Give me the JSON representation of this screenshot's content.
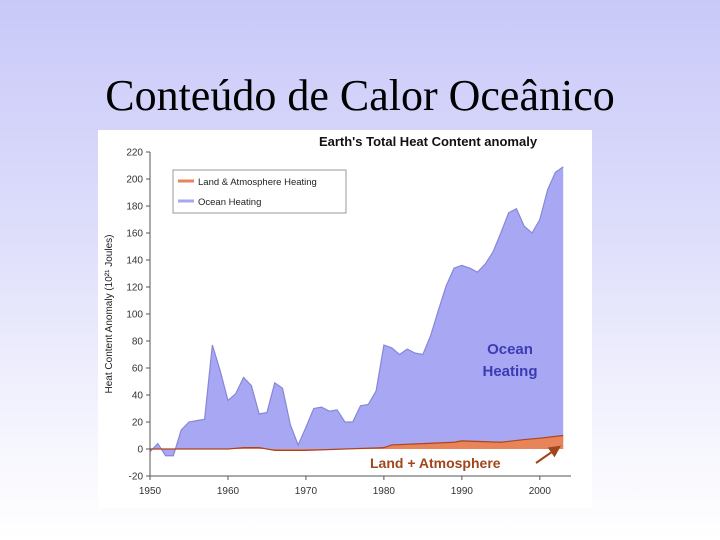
{
  "slide": {
    "title": "Conteúdo de Calor Oceânico"
  },
  "colors": {
    "ocean_fill": "#a7a7f3",
    "ocean_line": "#8787d8",
    "land_fill": "#e8845a",
    "land_line": "#b04418",
    "ocean_text": "#3b3bb3",
    "land_text": "#a0461c"
  },
  "chart_data": {
    "type": "area",
    "title": "Earth's Total Heat Content anomaly",
    "ylabel": "Heat Content Anomaly (10²¹ Joules)",
    "xlabel": "",
    "xlim": [
      1950,
      2004
    ],
    "ylim": [
      -20,
      220
    ],
    "x_ticks": [
      1950,
      1960,
      1970,
      1980,
      1990,
      2000
    ],
    "y_ticks": [
      -20,
      0,
      20,
      40,
      60,
      80,
      100,
      120,
      140,
      160,
      180,
      200,
      220
    ],
    "grid": false,
    "legend_position": "top-left",
    "series": [
      {
        "name": "Land & Atmosphere Heating",
        "x": [
          1950,
          1955,
          1960,
          1962,
          1964,
          1966,
          1970,
          1975,
          1980,
          1981,
          1985,
          1989,
          1990,
          1995,
          1998,
          2000,
          2003
        ],
        "values": [
          0,
          0,
          0,
          1,
          1,
          -1,
          -1,
          0,
          1,
          3,
          4,
          5,
          6,
          5,
          7,
          8,
          10
        ]
      },
      {
        "name": "Ocean Heating",
        "x": [
          1950,
          1951,
          1952,
          1953,
          1954,
          1955,
          1956,
          1957,
          1958,
          1959,
          1960,
          1961,
          1962,
          1963,
          1964,
          1965,
          1966,
          1967,
          1968,
          1969,
          1970,
          1971,
          1972,
          1973,
          1974,
          1975,
          1976,
          1977,
          1978,
          1979,
          1980,
          1981,
          1982,
          1983,
          1984,
          1985,
          1986,
          1987,
          1988,
          1989,
          1990,
          1991,
          1992,
          1993,
          1994,
          1995,
          1996,
          1997,
          1998,
          1999,
          2000,
          2001,
          2002,
          2003
        ],
        "values": [
          -2,
          4,
          -5,
          -5,
          14,
          20,
          21,
          22,
          77,
          58,
          36,
          41,
          53,
          47,
          26,
          27,
          49,
          45,
          18,
          3,
          16,
          30,
          31,
          28,
          29,
          20,
          20,
          32,
          33,
          43,
          77,
          75,
          70,
          74,
          71,
          70,
          84,
          103,
          121,
          134,
          136,
          134,
          131,
          137,
          146,
          160,
          175,
          178,
          165,
          160,
          170,
          192,
          205,
          209
        ]
      }
    ],
    "annotations": [
      {
        "text_lines": [
          "Ocean",
          "Heating"
        ]
      },
      {
        "text": "Land + Atmosphere"
      }
    ]
  }
}
